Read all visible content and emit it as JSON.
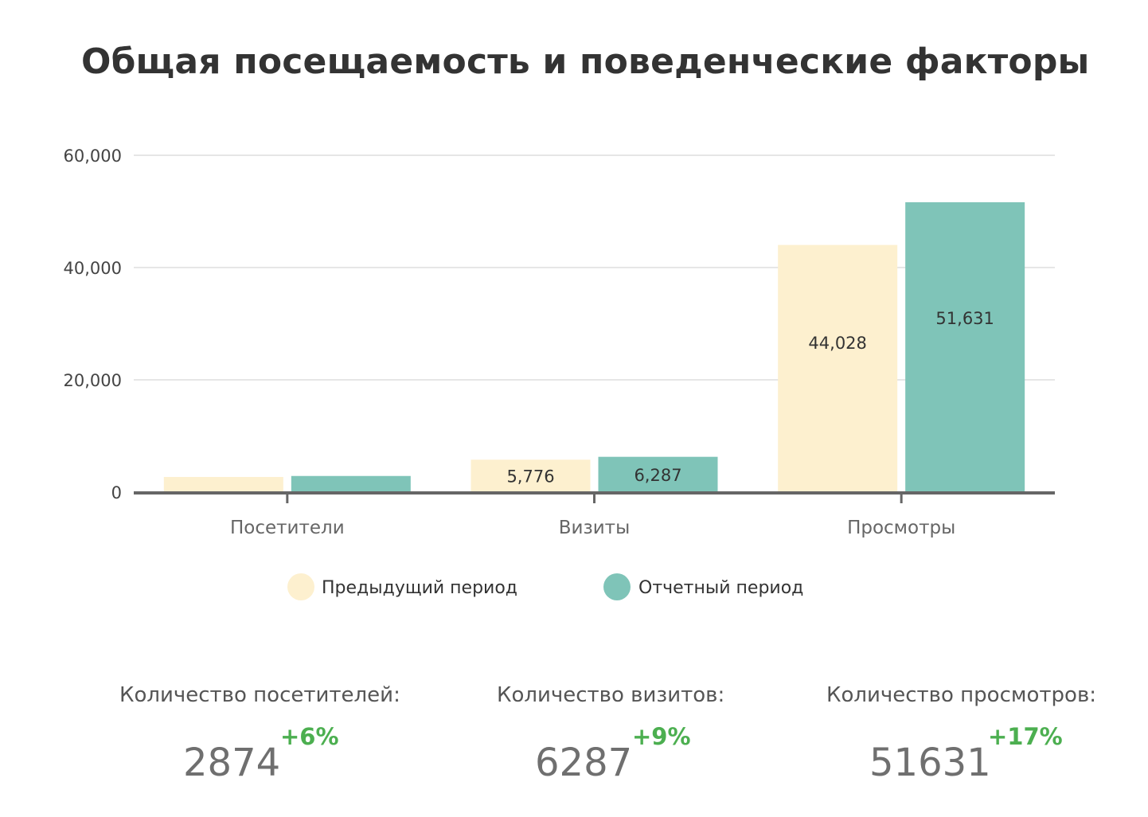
{
  "title": "Общая посещаемость и поведенческие факторы",
  "chart_data": {
    "type": "bar",
    "categories": [
      "Посетители",
      "Визиты",
      "Просмотры"
    ],
    "series": [
      {
        "name": "Предыдущий период",
        "values": [
          2700,
          5776,
          44028
        ],
        "labels": [
          "",
          "5,776",
          "44,028"
        ],
        "color": "#fdf0cf"
      },
      {
        "name": "Отчетный период",
        "values": [
          2874,
          6287,
          51631
        ],
        "labels": [
          "",
          "6,287",
          "51,631"
        ],
        "color": "#7fc4b8"
      }
    ],
    "ylim": [
      0,
      60000
    ],
    "yticks": [
      0,
      20000,
      40000,
      60000
    ],
    "ytick_labels": [
      "0",
      "20,000",
      "40,000",
      "60,000"
    ],
    "grid": true,
    "legend": "bottom"
  },
  "stats": [
    {
      "label": "Количество посетителей:",
      "value": "2874",
      "change": "+6%"
    },
    {
      "label": "Количество визитов:",
      "value": "6287",
      "change": "+9%"
    },
    {
      "label": "Количество просмотров:",
      "value": "51631",
      "change": "+17%"
    }
  ],
  "colors": {
    "grid": "#e6e6e6",
    "axis": "#666666",
    "positive": "#4caf50"
  }
}
